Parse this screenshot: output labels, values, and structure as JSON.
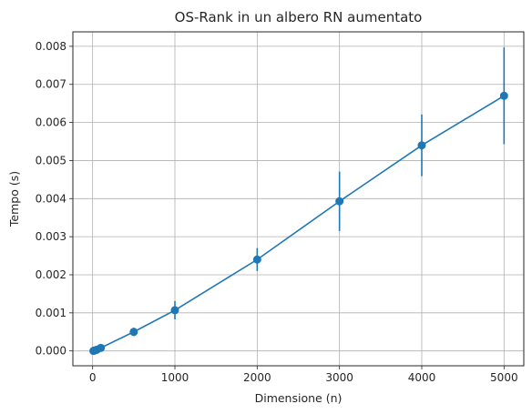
{
  "chart_data": {
    "type": "line",
    "title": "OS-Rank in un albero RN aumentato",
    "xlabel": "Dimensione (n)",
    "ylabel": "Tempo (s)",
    "xlim": [
      -240,
      5240
    ],
    "ylim": [
      -0.00039,
      0.00838
    ],
    "x_ticks": [
      0,
      1000,
      2000,
      3000,
      4000,
      5000
    ],
    "x_tick_labels": [
      "0",
      "1000",
      "2000",
      "3000",
      "4000",
      "5000"
    ],
    "y_ticks": [
      0.0,
      0.001,
      0.002,
      0.003,
      0.004,
      0.005,
      0.006,
      0.007,
      0.008
    ],
    "y_tick_labels": [
      "0.000",
      "0.001",
      "0.002",
      "0.003",
      "0.004",
      "0.005",
      "0.006",
      "0.007",
      "0.008"
    ],
    "grid": true,
    "series": [
      {
        "color": "#1f77b4",
        "marker": "circle",
        "points": [
          {
            "x": 10,
            "y": 0.0,
            "err": 3e-05
          },
          {
            "x": 20,
            "y": 1e-05,
            "err": 3e-05
          },
          {
            "x": 50,
            "y": 3e-05,
            "err": 3e-05
          },
          {
            "x": 100,
            "y": 8e-05,
            "err": 4e-05
          },
          {
            "x": 500,
            "y": 0.0005,
            "err": 0.00011
          },
          {
            "x": 1000,
            "y": 0.00107,
            "err": 0.00024
          },
          {
            "x": 2000,
            "y": 0.0024,
            "err": 0.0003
          },
          {
            "x": 3000,
            "y": 0.00393,
            "err": 0.00078
          },
          {
            "x": 4000,
            "y": 0.0054,
            "err": 0.00081
          },
          {
            "x": 5000,
            "y": 0.0067,
            "err": 0.00127
          }
        ]
      }
    ]
  }
}
